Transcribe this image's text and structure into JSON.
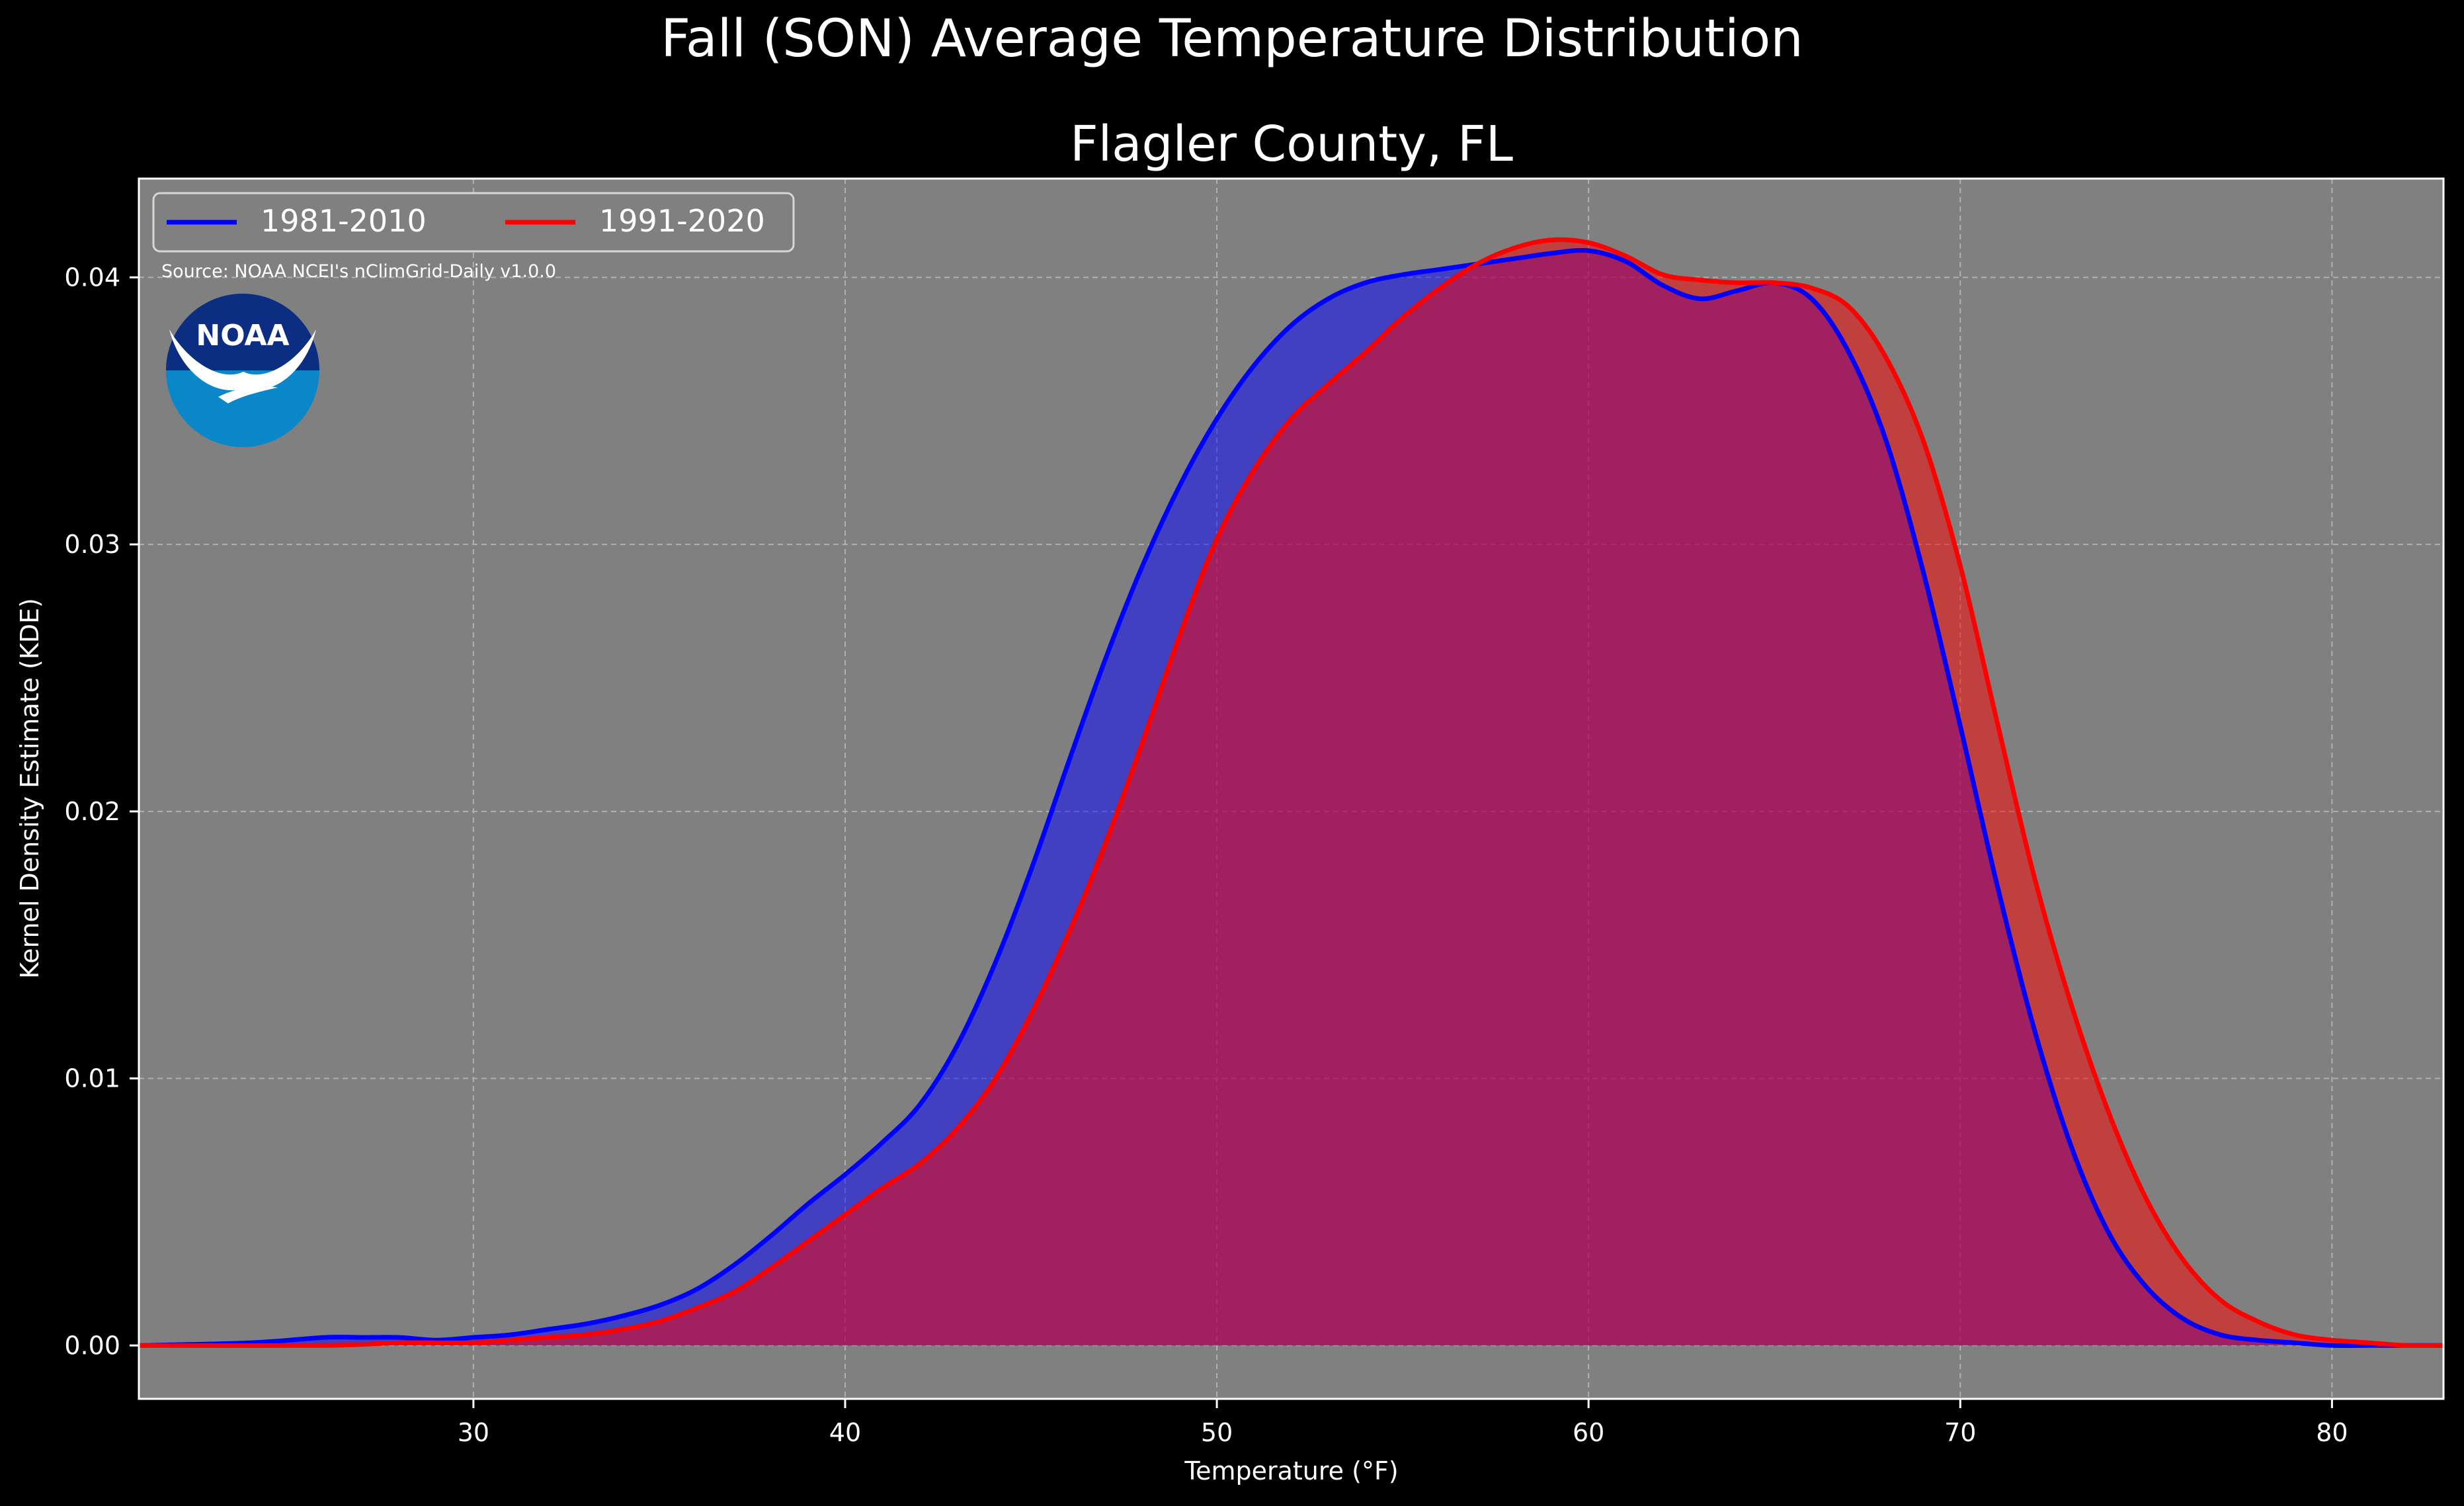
{
  "chart_data": {
    "type": "area",
    "suptitle": "Fall (SON) Average Temperature Distribution",
    "title": "Flagler County, FL",
    "xlabel": "Temperature ($^\\circ$F)",
    "xlabel_display": "Temperature (°F)",
    "ylabel": "Kernel Density Estimate (KDE)",
    "xlim": [
      21,
      83
    ],
    "ylim": [
      -0.002,
      0.0437
    ],
    "x_ticks": [
      30,
      40,
      50,
      60,
      70,
      80
    ],
    "x_tick_labels": [
      "30",
      "40",
      "50",
      "60",
      "70",
      "80"
    ],
    "y_ticks": [
      0.0,
      0.01,
      0.02,
      0.03,
      0.04
    ],
    "y_tick_labels": [
      "0.00",
      "0.01",
      "0.02",
      "0.03",
      "0.04"
    ],
    "grid": true,
    "legend_position": "top-left",
    "source_note": "Source: NOAA NCEI's nClimGrid-Daily v1.0.0",
    "logo_text": "NOAA",
    "colors": {
      "figure_background": "#000000",
      "axes_background": "#808080",
      "series_1981_2010": "#0000ff",
      "series_1991_2020": "#ff0000",
      "text": "#ffffff"
    },
    "series": [
      {
        "name": "1981-2010",
        "color": "#0000ff",
        "x": [
          21,
          24,
          26,
          27,
          28,
          29,
          30,
          31,
          32,
          33,
          34,
          35,
          36,
          37,
          38,
          39,
          40,
          41,
          42,
          43,
          44,
          45,
          46,
          47,
          48,
          49,
          50,
          51,
          52,
          53,
          54,
          55,
          56,
          57,
          58,
          59,
          60,
          61,
          62,
          63,
          64,
          65,
          66,
          67,
          68,
          69,
          70,
          71,
          72,
          73,
          74,
          75,
          76,
          77,
          78,
          79,
          80,
          81,
          82,
          83
        ],
        "y": [
          0.0,
          0.0001,
          0.0003,
          0.0003,
          0.0003,
          0.0002,
          0.0003,
          0.0004,
          0.0006,
          0.0008,
          0.0011,
          0.0015,
          0.0021,
          0.003,
          0.0041,
          0.0053,
          0.0064,
          0.0076,
          0.009,
          0.0112,
          0.0142,
          0.0178,
          0.0218,
          0.0257,
          0.0292,
          0.0322,
          0.0347,
          0.0367,
          0.0382,
          0.0392,
          0.0398,
          0.0401,
          0.0403,
          0.0405,
          0.0407,
          0.0409,
          0.041,
          0.0406,
          0.0397,
          0.0392,
          0.0395,
          0.0398,
          0.0392,
          0.0372,
          0.0339,
          0.029,
          0.0232,
          0.0172,
          0.0118,
          0.0074,
          0.0042,
          0.0022,
          0.001,
          0.0004,
          0.0002,
          0.0001,
          0.0,
          0.0,
          0.0,
          0.0
        ]
      },
      {
        "name": "1991-2020",
        "color": "#ff0000",
        "x": [
          21,
          26,
          28,
          30,
          31,
          32,
          33,
          34,
          35,
          36,
          37,
          38,
          39,
          40,
          41,
          42,
          43,
          44,
          45,
          46,
          47,
          48,
          49,
          50,
          51,
          52,
          53,
          54,
          55,
          56,
          57,
          58,
          59,
          60,
          61,
          62,
          63,
          64,
          65,
          66,
          67,
          68,
          69,
          70,
          71,
          72,
          73,
          74,
          75,
          76,
          77,
          78,
          79,
          80,
          81,
          82,
          83
        ],
        "y": [
          0.0,
          0.0,
          0.0001,
          0.0001,
          0.0002,
          0.0003,
          0.0004,
          0.0006,
          0.0009,
          0.0014,
          0.002,
          0.0029,
          0.0039,
          0.0049,
          0.0059,
          0.0068,
          0.0081,
          0.0099,
          0.0124,
          0.0154,
          0.0188,
          0.0226,
          0.0266,
          0.0302,
          0.0328,
          0.0347,
          0.036,
          0.0372,
          0.0385,
          0.0396,
          0.0405,
          0.0411,
          0.0414,
          0.0413,
          0.0408,
          0.0401,
          0.0399,
          0.0398,
          0.0398,
          0.0396,
          0.0389,
          0.037,
          0.0339,
          0.0292,
          0.0233,
          0.0175,
          0.0127,
          0.0087,
          0.0055,
          0.0032,
          0.0017,
          0.0009,
          0.0004,
          0.0002,
          0.0001,
          0.0,
          0.0
        ]
      }
    ]
  }
}
